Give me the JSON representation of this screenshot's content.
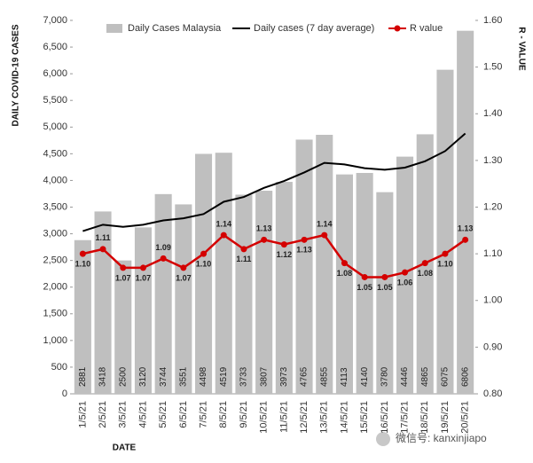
{
  "chart_data": {
    "type": "combo",
    "categories": [
      "1/5/21",
      "2/5/21",
      "3/5/21",
      "4/5/21",
      "5/5/21",
      "6/5/21",
      "7/5/21",
      "8/5/21",
      "9/5/21",
      "10/5/21",
      "11/5/21",
      "12/5/21",
      "13/5/21",
      "14/5/21",
      "15/5/21",
      "16/5/21",
      "17/5/21",
      "18/5/21",
      "19/5/21",
      "20/5/21"
    ],
    "x_label": "DATE",
    "y_label": "DAILY COVID-19 CASES",
    "y2_label": "R - VALUE",
    "ylim": [
      0,
      7000
    ],
    "yticks": [
      0,
      500,
      {
        "value": 1000,
        "label": "1,000"
      },
      {
        "value": 1500,
        "label": "1,500"
      },
      {
        "value": 2000,
        "label": "2,000"
      },
      {
        "value": 2500,
        "label": "2,500"
      },
      {
        "value": 3000,
        "label": "3,000"
      },
      {
        "value": 3500,
        "label": "3,500"
      },
      {
        "value": 4000,
        "label": "4,000"
      },
      {
        "value": 4500,
        "label": "4,500"
      },
      {
        "value": 5000,
        "label": "5,000"
      },
      {
        "value": 5500,
        "label": "5,500"
      },
      {
        "value": 6000,
        "label": "6,000"
      },
      {
        "value": 6500,
        "label": "6,500"
      },
      {
        "value": 7000,
        "label": "7,000"
      }
    ],
    "y2lim": [
      0.8,
      1.6
    ],
    "y2ticks": [
      {
        "value": 0.8,
        "label": "0.80"
      },
      {
        "value": 0.9,
        "label": "0.90"
      },
      {
        "value": 1.0,
        "label": "1.00"
      },
      {
        "value": 1.1,
        "label": "1.10"
      },
      {
        "value": 1.2,
        "label": "1.20"
      },
      {
        "value": 1.3,
        "label": "1.30"
      },
      {
        "value": 1.4,
        "label": "1.40"
      },
      {
        "value": 1.5,
        "label": "1.50"
      },
      {
        "value": 1.6,
        "label": "1.60"
      }
    ],
    "series": [
      {
        "name": "Daily Cases Malaysia",
        "type": "bar",
        "color": "#bfbfbf",
        "values": [
          2881,
          3418,
          2500,
          3120,
          3744,
          3551,
          4498,
          4519,
          3733,
          3807,
          3973,
          4765,
          4855,
          4113,
          4140,
          3780,
          4446,
          4865,
          6075,
          6806
        ]
      },
      {
        "name": "Daily cases (7 day average)",
        "type": "line",
        "color": "#000000",
        "values": [
          3050,
          3170,
          3130,
          3170,
          3250,
          3290,
          3370,
          3600,
          3690,
          3860,
          3990,
          4150,
          4330,
          4300,
          4230,
          4200,
          4240,
          4360,
          4550,
          4880
        ]
      },
      {
        "name": "R value",
        "type": "line",
        "axis": "y2",
        "color": "#d40000",
        "markers": true,
        "values": [
          1.1,
          1.11,
          1.07,
          1.07,
          1.09,
          1.07,
          1.1,
          1.14,
          1.11,
          1.13,
          1.12,
          1.13,
          1.14,
          1.08,
          1.05,
          1.05,
          1.06,
          1.08,
          1.1,
          1.13
        ],
        "value_labels": [
          "1.10",
          "1.11",
          "1.07",
          "1.07",
          "1.09",
          "1.07",
          "1.10",
          "1.14",
          "1.11",
          "1.13",
          "1.12",
          "1.13",
          "1.14",
          "1.08",
          "1.05",
          "1.05",
          "1.06",
          "1.08",
          "1.10",
          "1.13"
        ]
      }
    ],
    "watermark": "微信号: kanxinjiapo"
  }
}
